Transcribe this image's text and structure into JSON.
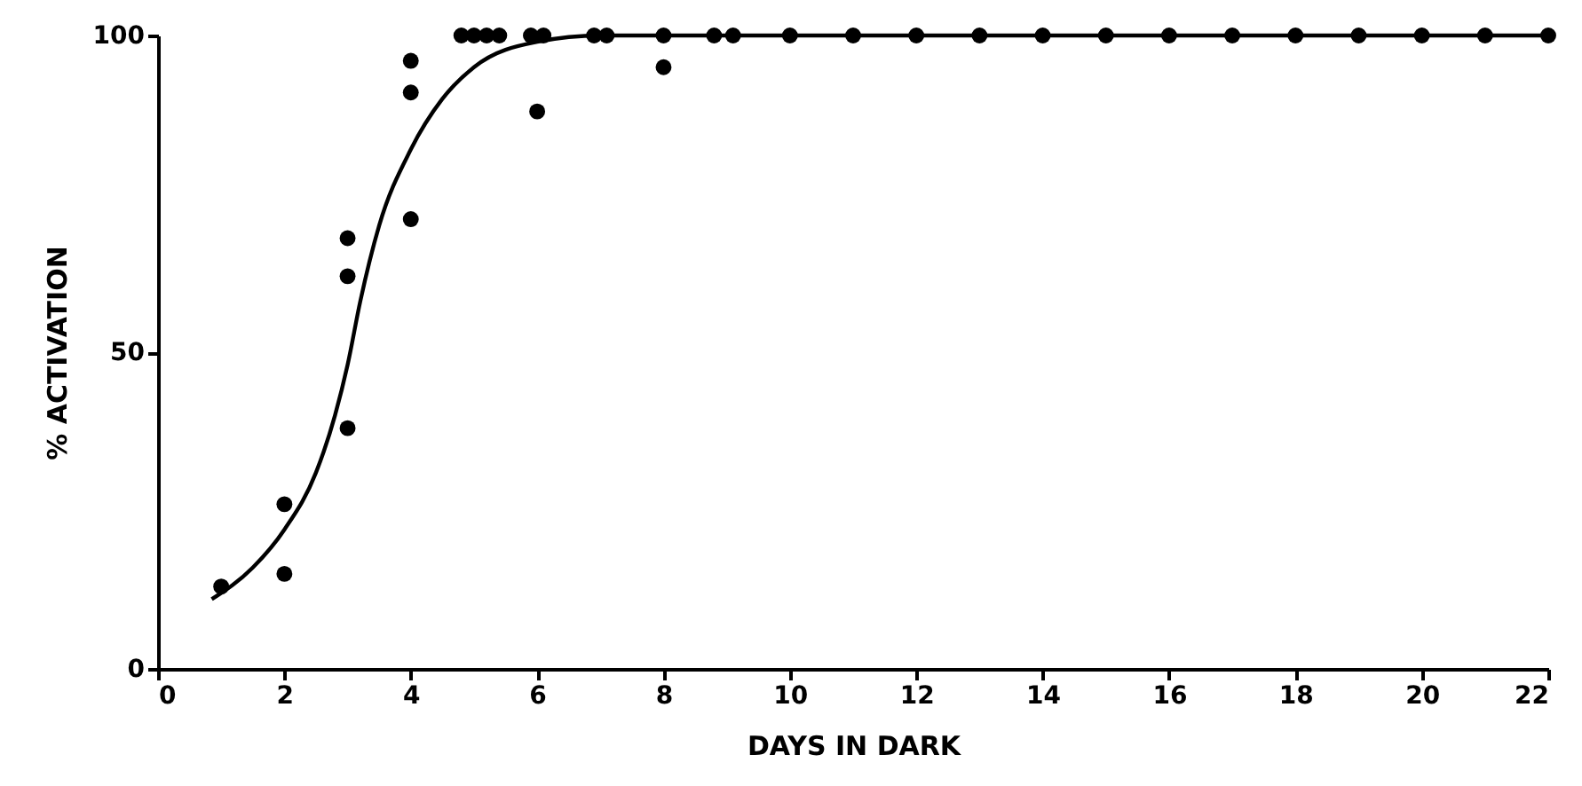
{
  "chart_data": {
    "type": "scatter",
    "xlabel": "DAYS IN DARK",
    "ylabel": "% ACTIVATION",
    "xlim": [
      0,
      22
    ],
    "ylim": [
      0,
      100
    ],
    "xticks": [
      0,
      2,
      4,
      6,
      8,
      10,
      12,
      14,
      16,
      18,
      20,
      22
    ],
    "yticks": [
      0,
      50,
      100
    ],
    "grid": false,
    "series": [
      {
        "color": "#000000",
        "marker": "circle",
        "x": [
          1,
          2,
          2,
          3,
          3,
          3,
          4,
          4,
          4,
          4.8,
          5,
          5.2,
          5.4,
          5.9,
          6,
          6.1,
          6.9,
          7.1,
          8,
          8,
          8.8,
          9.1,
          10,
          11,
          12,
          13,
          14,
          15,
          16,
          17,
          18,
          19,
          20,
          21,
          22
        ],
        "values": [
          13,
          15,
          26,
          38,
          62,
          68,
          71,
          91,
          96,
          100,
          100,
          100,
          100,
          100,
          88,
          100,
          100,
          100,
          100,
          95,
          100,
          100,
          100,
          100,
          100,
          100,
          100,
          100,
          100,
          100,
          100,
          100,
          100,
          100,
          100
        ]
      },
      {
        "type": "line",
        "color": "#000000",
        "marker": "none",
        "line_style": "solid",
        "x": [
          0.85,
          1.5,
          2,
          2.5,
          2.8,
          3,
          3.2,
          3.5,
          4,
          4.5,
          5,
          6,
          7,
          10,
          22
        ],
        "values": [
          11,
          16,
          22,
          31,
          40,
          48,
          58,
          70,
          82,
          90,
          95,
          99,
          100,
          100,
          100
        ]
      }
    ]
  }
}
